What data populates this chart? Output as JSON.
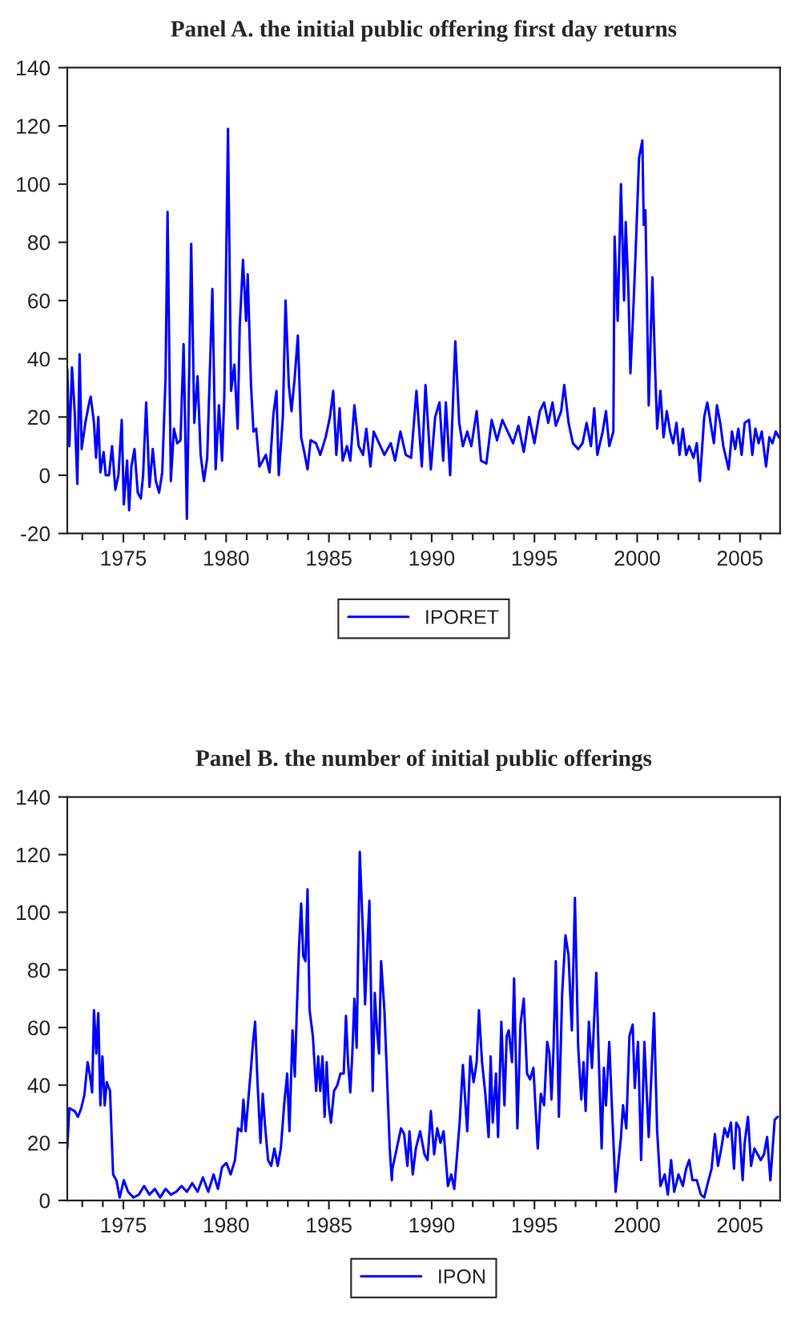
{
  "chart_data": [
    {
      "type": "line",
      "title": "Panel A. the initial public offering first day returns",
      "xlim": [
        1972.27,
        2006.95
      ],
      "ylim": [
        -20,
        140
      ],
      "xticks": [
        {
          "value": 1973,
          "label": null
        },
        {
          "value": 1974,
          "label": null
        },
        1975,
        {
          "value": 1976,
          "label": null
        },
        {
          "value": 1977,
          "label": null
        },
        {
          "value": 1978,
          "label": null
        },
        {
          "value": 1979,
          "label": null
        },
        1980,
        {
          "value": 1981,
          "label": null
        },
        {
          "value": 1982,
          "label": null
        },
        {
          "value": 1983,
          "label": null
        },
        {
          "value": 1984,
          "label": null
        },
        1985,
        {
          "value": 1986,
          "label": null
        },
        {
          "value": 1987,
          "label": null
        },
        {
          "value": 1988,
          "label": null
        },
        {
          "value": 1989,
          "label": null
        },
        1990,
        {
          "value": 1991,
          "label": null
        },
        {
          "value": 1992,
          "label": null
        },
        {
          "value": 1993,
          "label": null
        },
        {
          "value": 1994,
          "label": null
        },
        1995,
        {
          "value": 1996,
          "label": null
        },
        {
          "value": 1997,
          "label": null
        },
        {
          "value": 1998,
          "label": null
        },
        {
          "value": 1999,
          "label": null
        },
        2000,
        {
          "value": 2001,
          "label": null
        },
        {
          "value": 2002,
          "label": null
        },
        {
          "value": 2003,
          "label": null
        },
        {
          "value": 2004,
          "label": null
        },
        2005,
        {
          "value": 2006,
          "label": null
        }
      ],
      "yticks": [
        -20,
        0,
        20,
        40,
        60,
        80,
        100,
        120,
        140
      ],
      "legend": "bottom",
      "series": [
        {
          "name": "IPORET",
          "color": "#0000ff",
          "x": [
            1972.27,
            1972.37,
            1972.5,
            1972.63,
            1972.76,
            1972.87,
            1972.97,
            1973.15,
            1973.31,
            1973.41,
            1973.57,
            1973.67,
            1973.78,
            1973.88,
            1974.04,
            1974.14,
            1974.3,
            1974.45,
            1974.61,
            1974.76,
            1974.92,
            1975.02,
            1975.18,
            1975.28,
            1975.39,
            1975.54,
            1975.7,
            1975.85,
            1975.96,
            1976.11,
            1976.27,
            1976.43,
            1976.58,
            1976.74,
            1976.89,
            1977.05,
            1977.15,
            1977.31,
            1977.46,
            1977.62,
            1977.78,
            1977.93,
            1978.09,
            1978.3,
            1978.45,
            1978.61,
            1978.76,
            1978.92,
            1979.08,
            1979.33,
            1979.49,
            1979.65,
            1979.8,
            1979.91,
            1980.09,
            1980.24,
            1980.4,
            1980.56,
            1980.66,
            1980.82,
            1980.97,
            1981.05,
            1981.21,
            1981.33,
            1981.46,
            1981.62,
            1981.78,
            1981.93,
            1982.11,
            1982.3,
            1982.45,
            1982.56,
            1982.76,
            1982.89,
            1983.05,
            1983.18,
            1983.33,
            1983.49,
            1983.65,
            1983.8,
            1983.96,
            1984.11,
            1984.37,
            1984.58,
            1984.84,
            1985.05,
            1985.21,
            1985.36,
            1985.52,
            1985.67,
            1985.88,
            1986.04,
            1986.24,
            1986.45,
            1986.66,
            1986.82,
            1987.02,
            1987.18,
            1987.44,
            1987.7,
            1988.01,
            1988.22,
            1988.48,
            1988.74,
            1989.0,
            1989.26,
            1989.52,
            1989.7,
            1989.96,
            1990.17,
            1990.38,
            1990.56,
            1990.69,
            1990.9,
            1991.15,
            1991.34,
            1991.52,
            1991.73,
            1991.93,
            1992.19,
            1992.4,
            1992.66,
            1992.92,
            1993.18,
            1993.44,
            1993.7,
            1993.96,
            1994.22,
            1994.48,
            1994.74,
            1995.0,
            1995.26,
            1995.47,
            1995.67,
            1995.88,
            1996.04,
            1996.3,
            1996.45,
            1996.66,
            1996.87,
            1997.13,
            1997.34,
            1997.54,
            1997.75,
            1997.91,
            1998.06,
            1998.32,
            1998.48,
            1998.64,
            1998.84,
            1998.9,
            1999.05,
            1999.21,
            1999.36,
            1999.44,
            1999.57,
            1999.67,
            1999.83,
            1999.93,
            2000.09,
            2000.25,
            2000.32,
            2000.4,
            2000.56,
            2000.74,
            2000.87,
            2000.97,
            2001.13,
            2001.28,
            2001.44,
            2001.6,
            2001.75,
            2001.91,
            2002.06,
            2002.22,
            2002.38,
            2002.53,
            2002.74,
            2002.9,
            2003.05,
            2003.26,
            2003.41,
            2003.57,
            2003.73,
            2003.88,
            2004.04,
            2004.19,
            2004.45,
            2004.61,
            2004.77,
            2004.92,
            2005.08,
            2005.23,
            2005.44,
            2005.6,
            2005.75,
            2005.91,
            2006.06,
            2006.27,
            2006.43,
            2006.58,
            2006.74,
            2006.9
          ],
          "values": [
            36.5,
            10,
            37,
            22,
            -3,
            41.6,
            9,
            18,
            24,
            27,
            18,
            6,
            20,
            1,
            8,
            0,
            0,
            10,
            -5,
            0,
            19,
            -10,
            5,
            -12,
            3,
            9,
            -6,
            -8,
            0,
            25,
            -4,
            9,
            -2,
            -6,
            1,
            33,
            90.5,
            -2,
            16,
            11,
            12,
            45,
            -15,
            79.5,
            18,
            34,
            7,
            -2,
            6,
            64,
            2,
            24,
            5,
            27,
            119,
            29,
            38,
            16,
            51,
            74,
            53,
            69,
            31,
            15,
            16,
            3,
            5,
            7,
            1,
            21,
            29,
            0,
            20,
            60,
            31,
            22,
            33,
            48,
            13,
            8,
            2,
            12,
            11,
            7,
            13,
            20,
            29,
            7,
            23,
            5,
            10,
            5,
            24,
            10,
            7,
            16,
            3,
            15,
            11,
            7,
            11,
            5,
            15,
            7,
            6,
            29,
            3,
            31,
            2,
            20,
            25,
            5,
            25,
            0,
            46,
            18,
            10,
            15,
            10,
            22,
            5,
            4,
            19,
            12,
            19,
            15,
            11,
            17,
            8,
            20,
            11,
            22,
            25,
            18,
            25,
            17,
            22,
            31,
            18,
            11,
            9,
            11,
            18,
            10,
            23,
            7,
            15,
            22,
            10,
            15,
            82,
            53,
            100,
            60,
            87,
            64,
            35,
            60,
            78,
            109,
            115,
            86,
            91,
            24,
            68,
            37,
            16,
            29,
            13,
            22,
            15,
            11,
            18,
            7,
            16,
            7,
            10,
            6,
            11,
            -2,
            20,
            25,
            18,
            11,
            24,
            18,
            10,
            2,
            15,
            9,
            16,
            7,
            18,
            19,
            7,
            16,
            11,
            15,
            3,
            13,
            11,
            15,
            13
          ]
        }
      ]
    },
    {
      "type": "line",
      "title": "Panel B. the number of initial public offerings",
      "xlim": [
        1972.27,
        2006.95
      ],
      "ylim": [
        0,
        140
      ],
      "xticks": [
        {
          "value": 1973,
          "label": null
        },
        {
          "value": 1974,
          "label": null
        },
        1975,
        {
          "value": 1976,
          "label": null
        },
        {
          "value": 1977,
          "label": null
        },
        {
          "value": 1978,
          "label": null
        },
        {
          "value": 1979,
          "label": null
        },
        1980,
        {
          "value": 1981,
          "label": null
        },
        {
          "value": 1982,
          "label": null
        },
        {
          "value": 1983,
          "label": null
        },
        {
          "value": 1984,
          "label": null
        },
        1985,
        {
          "value": 1986,
          "label": null
        },
        {
          "value": 1987,
          "label": null
        },
        {
          "value": 1988,
          "label": null
        },
        {
          "value": 1989,
          "label": null
        },
        1990,
        {
          "value": 1991,
          "label": null
        },
        {
          "value": 1992,
          "label": null
        },
        {
          "value": 1993,
          "label": null
        },
        {
          "value": 1994,
          "label": null
        },
        1995,
        {
          "value": 1996,
          "label": null
        },
        {
          "value": 1997,
          "label": null
        },
        {
          "value": 1998,
          "label": null
        },
        {
          "value": 1999,
          "label": null
        },
        2000,
        {
          "value": 2001,
          "label": null
        },
        {
          "value": 2002,
          "label": null
        },
        {
          "value": 2003,
          "label": null
        },
        {
          "value": 2004,
          "label": null
        },
        2005,
        {
          "value": 2006,
          "label": null
        }
      ],
      "yticks": [
        0,
        20,
        40,
        60,
        80,
        100,
        120,
        140
      ],
      "legend": "bottom",
      "series": [
        {
          "name": "IPON",
          "color": "#0000ff",
          "x": [
            1972.27,
            1972.37,
            1972.63,
            1972.79,
            1972.95,
            1973.1,
            1973.26,
            1973.36,
            1973.48,
            1973.57,
            1973.68,
            1973.78,
            1973.88,
            1973.98,
            1974.09,
            1974.19,
            1974.35,
            1974.5,
            1974.66,
            1974.82,
            1975.02,
            1975.23,
            1975.49,
            1975.75,
            1976.01,
            1976.27,
            1976.53,
            1976.79,
            1977.05,
            1977.31,
            1977.57,
            1977.83,
            1978.09,
            1978.35,
            1978.61,
            1978.87,
            1979.13,
            1979.39,
            1979.6,
            1979.8,
            1980.01,
            1980.22,
            1980.43,
            1980.58,
            1980.74,
            1980.84,
            1980.95,
            1981.08,
            1981.21,
            1981.31,
            1981.41,
            1981.52,
            1981.67,
            1981.78,
            1981.88,
            1982.04,
            1982.19,
            1982.35,
            1982.51,
            1982.66,
            1982.82,
            1982.97,
            1983.08,
            1983.23,
            1983.34,
            1983.44,
            1983.54,
            1983.65,
            1983.75,
            1983.86,
            1983.96,
            1984.06,
            1984.22,
            1984.38,
            1984.48,
            1984.58,
            1984.69,
            1984.79,
            1984.89,
            1984.99,
            1985.1,
            1985.25,
            1985.41,
            1985.56,
            1985.72,
            1985.83,
            1985.93,
            1986.04,
            1986.14,
            1986.24,
            1986.35,
            1986.5,
            1986.66,
            1986.76,
            1986.87,
            1986.97,
            1987.13,
            1987.23,
            1987.34,
            1987.44,
            1987.54,
            1987.7,
            1987.8,
            1987.96,
            1988.06,
            1988.09,
            1988.3,
            1988.51,
            1988.66,
            1988.82,
            1988.92,
            1989.08,
            1989.23,
            1989.44,
            1989.65,
            1989.8,
            1989.96,
            1990.12,
            1990.27,
            1990.43,
            1990.58,
            1990.79,
            1990.95,
            1991.1,
            1991.26,
            1991.36,
            1991.52,
            1991.73,
            1991.88,
            1992.04,
            1992.19,
            1992.3,
            1992.45,
            1992.61,
            1992.77,
            1992.87,
            1992.97,
            1993.13,
            1993.23,
            1993.39,
            1993.54,
            1993.65,
            1993.75,
            1993.91,
            1994.01,
            1994.17,
            1994.32,
            1994.48,
            1994.64,
            1994.79,
            1994.95,
            1995.16,
            1995.31,
            1995.47,
            1995.62,
            1995.73,
            1995.83,
            1995.93,
            1996.04,
            1996.19,
            1996.35,
            1996.51,
            1996.66,
            1996.82,
            1996.97,
            1997.13,
            1997.28,
            1997.39,
            1997.49,
            1997.65,
            1997.8,
            1998.01,
            1998.17,
            1998.27,
            1998.38,
            1998.48,
            1998.64,
            1998.79,
            1998.95,
            1999.1,
            1999.21,
            1999.31,
            1999.47,
            1999.62,
            1999.78,
            1999.88,
            2000.04,
            2000.19,
            2000.35,
            2000.56,
            2000.82,
            2000.97,
            2001.13,
            2001.34,
            2001.49,
            2001.65,
            2001.8,
            2002.01,
            2002.22,
            2002.38,
            2002.53,
            2002.69,
            2002.9,
            2003.1,
            2003.26,
            2003.47,
            2003.62,
            2003.78,
            2003.93,
            2004.09,
            2004.25,
            2004.4,
            2004.56,
            2004.71,
            2004.82,
            2004.97,
            2005.13,
            2005.23,
            2005.39,
            2005.54,
            2005.7,
            2005.86,
            2006.01,
            2006.17,
            2006.32,
            2006.48,
            2006.69,
            2006.84
          ],
          "values": [
            18,
            32,
            31,
            29,
            32,
            36.5,
            48,
            44,
            37.5,
            66,
            51,
            65,
            33,
            50,
            33,
            41,
            38,
            9,
            7,
            1,
            7,
            3,
            1,
            2,
            5,
            2,
            4,
            1,
            4,
            2,
            3,
            5,
            3,
            6,
            3,
            8,
            3,
            9,
            4,
            11.5,
            13,
            9,
            14,
            25,
            24,
            35,
            24,
            35,
            46,
            55,
            62,
            42,
            20,
            37,
            27,
            14,
            12,
            18,
            12,
            18,
            33,
            44,
            24,
            59,
            43,
            66,
            87,
            103,
            85,
            83,
            108,
            66,
            57,
            38,
            50,
            38,
            50,
            29,
            48,
            33,
            27,
            38,
            40,
            44,
            44,
            64,
            48,
            37.5,
            51,
            70,
            53,
            121,
            92,
            68,
            88,
            104,
            38,
            72,
            59,
            51,
            83,
            66,
            48,
            18,
            7,
            11,
            18,
            25,
            23,
            12,
            24,
            9,
            18,
            24,
            16,
            14,
            31,
            16,
            25,
            20,
            24,
            5,
            9,
            4,
            18,
            27,
            47,
            24,
            50,
            41,
            48,
            66,
            48,
            37,
            22,
            50,
            27,
            44,
            22,
            62,
            33,
            57,
            59,
            48,
            77,
            25,
            61,
            70,
            44,
            42,
            46,
            18,
            37,
            33,
            55,
            51,
            35,
            53,
            83,
            29,
            72,
            92,
            85,
            59,
            105,
            53,
            35,
            48,
            31,
            62,
            46,
            79,
            40,
            18,
            46,
            33,
            55,
            29,
            3,
            14,
            22,
            33,
            25,
            57,
            61,
            39,
            55,
            14,
            55,
            22,
            65,
            24,
            5,
            9,
            2,
            14,
            3,
            9,
            5,
            11,
            14,
            7,
            7,
            2,
            1,
            7,
            11,
            23,
            12,
            18,
            25,
            22,
            27,
            11,
            27,
            25,
            7,
            20,
            29,
            12,
            18,
            16,
            14,
            16,
            22,
            7,
            28,
            29
          ]
        }
      ]
    }
  ]
}
